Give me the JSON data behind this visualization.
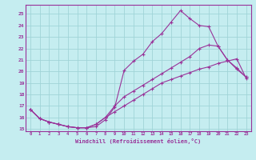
{
  "xlabel": "Windchill (Refroidissement éolien,°C)",
  "xlim": [
    -0.5,
    23.5
  ],
  "ylim": [
    14.8,
    25.8
  ],
  "yticks": [
    15,
    16,
    17,
    18,
    19,
    20,
    21,
    22,
    23,
    24,
    25
  ],
  "xticks": [
    0,
    1,
    2,
    3,
    4,
    5,
    6,
    7,
    8,
    9,
    10,
    11,
    12,
    13,
    14,
    15,
    16,
    17,
    18,
    19,
    20,
    21,
    22,
    23
  ],
  "background_color": "#c5edf0",
  "grid_color": "#a0d4d8",
  "line_color": "#993399",
  "line1_x": [
    0,
    1,
    2,
    3,
    4,
    5,
    6,
    7,
    8,
    9,
    10,
    11,
    12,
    13,
    14,
    15,
    16,
    17,
    18,
    19,
    20,
    21,
    22,
    23
  ],
  "line1_y": [
    16.7,
    15.9,
    15.6,
    15.4,
    15.2,
    15.1,
    15.1,
    15.2,
    15.8,
    16.9,
    20.1,
    20.9,
    21.5,
    22.6,
    23.3,
    24.3,
    25.3,
    24.6,
    24.0,
    23.9,
    22.2,
    21.0,
    20.2,
    19.5
  ],
  "line2_x": [
    0,
    1,
    2,
    3,
    4,
    5,
    6,
    7,
    8,
    9,
    10,
    11,
    12,
    13,
    14,
    15,
    16,
    17,
    18,
    19,
    20,
    21,
    22,
    23
  ],
  "line2_y": [
    16.7,
    15.9,
    15.6,
    15.4,
    15.2,
    15.1,
    15.1,
    15.4,
    16.0,
    17.0,
    17.8,
    18.3,
    18.8,
    19.3,
    19.8,
    20.3,
    20.8,
    21.3,
    22.0,
    22.3,
    22.2,
    21.0,
    20.3,
    19.5
  ],
  "line3_x": [
    0,
    1,
    2,
    3,
    4,
    5,
    6,
    7,
    8,
    9,
    10,
    11,
    12,
    13,
    14,
    15,
    16,
    17,
    18,
    19,
    20,
    21,
    22,
    23
  ],
  "line3_y": [
    16.7,
    15.9,
    15.6,
    15.4,
    15.2,
    15.1,
    15.1,
    15.4,
    16.0,
    16.5,
    17.0,
    17.5,
    18.0,
    18.5,
    19.0,
    19.3,
    19.6,
    19.9,
    20.2,
    20.4,
    20.7,
    20.9,
    21.1,
    19.4
  ]
}
